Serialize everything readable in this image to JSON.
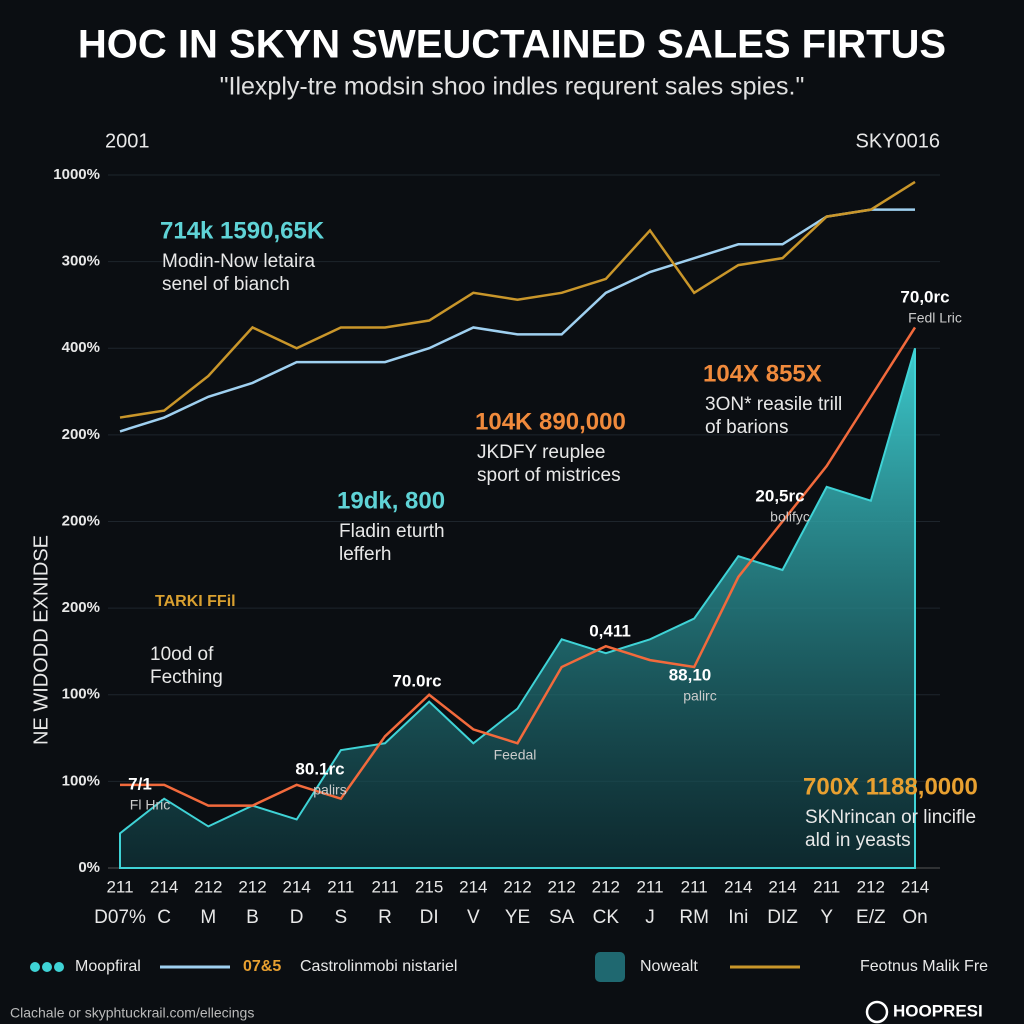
{
  "chart_data": {
    "type": "line",
    "title": "HOC IN SKYN SWEUCTAINED SALES FIRTUS",
    "subtitle": "\"Ilexply-tre modsin shoo indles requrent sales spies.\"",
    "corner_left": "2001",
    "corner_right": "SKY0016",
    "ylabel": "NE WIDODD EXNIDSE",
    "y_labels": [
      "1000%",
      "300%",
      "400%",
      "200%",
      "200%",
      "200%",
      "100%",
      "100%",
      "0%"
    ],
    "ylim": [
      0,
      100
    ],
    "x_sublabels": [
      "211",
      "214",
      "212",
      "212",
      "214",
      "211",
      "211",
      "215",
      "214",
      "212",
      "212",
      "212",
      "211",
      "211",
      "214",
      "214",
      "211",
      "212",
      "214"
    ],
    "categories": [
      "D07%",
      "C",
      "M",
      "B",
      "D",
      "S",
      "R",
      "DI",
      "V",
      "YE",
      "SA",
      "CK",
      "J",
      "RM",
      "Ini",
      "DIZ",
      "Y",
      "E/Z",
      "On"
    ],
    "series": [
      {
        "name": "Moopfiral",
        "color": "#3fd3d6",
        "style": "area",
        "values": [
          5,
          10,
          6,
          9,
          7,
          17,
          18,
          24,
          18,
          23,
          33,
          31,
          33,
          36,
          45,
          43,
          55,
          53,
          75
        ]
      },
      {
        "name": "Castrolinmobi nistariel",
        "color": "#9fd0f0",
        "style": "line",
        "values": [
          63,
          65,
          68,
          70,
          73,
          73,
          73,
          75,
          78,
          77,
          77,
          83,
          86,
          88,
          90,
          90,
          94,
          95,
          95
        ]
      },
      {
        "name": "Nowealt",
        "color": "#f26a3c",
        "style": "line",
        "values": [
          12,
          12,
          9,
          9,
          12,
          10,
          19,
          25,
          20,
          18,
          29,
          32,
          30,
          29,
          42,
          50,
          58,
          68,
          78
        ]
      },
      {
        "name": "Feotnus Malik Fre",
        "color": "#c9962a",
        "style": "line",
        "values": [
          65,
          66,
          71,
          78,
          75,
          78,
          78,
          79,
          83,
          82,
          83,
          85,
          92,
          83,
          87,
          88,
          94,
          95,
          99
        ]
      }
    ],
    "legend_note": "07&5",
    "annotations": [
      {
        "title": "714k 1590,65K",
        "lines": [
          "Modin-Now letaira",
          "senel of bianch"
        ]
      },
      {
        "title": "104K 890,000",
        "lines": [
          "JKDFY reuplee",
          "sport of mistrices"
        ]
      },
      {
        "title": "104X 855X",
        "lines": [
          "3ON* reasile trill",
          "of barions"
        ]
      },
      {
        "title": "19dk, 800",
        "lines": [
          "Fladin eturth",
          "lefferh"
        ]
      },
      {
        "title": "TARKI FFil",
        "lines": [
          "10od of",
          "Fecthing"
        ]
      },
      {
        "title": "700X 1188,0000",
        "lines": [
          "SKNrincan or lincifle",
          "ald in yeasts"
        ]
      }
    ],
    "point_labels": [
      {
        "title": "70,0rc",
        "note": "Fedl Lric"
      },
      {
        "title": "20,5rc",
        "note": "bolifyc"
      },
      {
        "title": "0,411"
      },
      {
        "title": "88,10",
        "note": "palirc"
      },
      {
        "title": "70.0rc"
      },
      {
        "title": "80.1rc",
        "note": "palirs"
      },
      {
        "note": "Feedal"
      },
      {
        "title": "7/1",
        "note": "Fl Hric"
      }
    ],
    "footer": "Clachale or skyphtuckrail.com/ellecings",
    "brand": "HOOPRESI"
  }
}
